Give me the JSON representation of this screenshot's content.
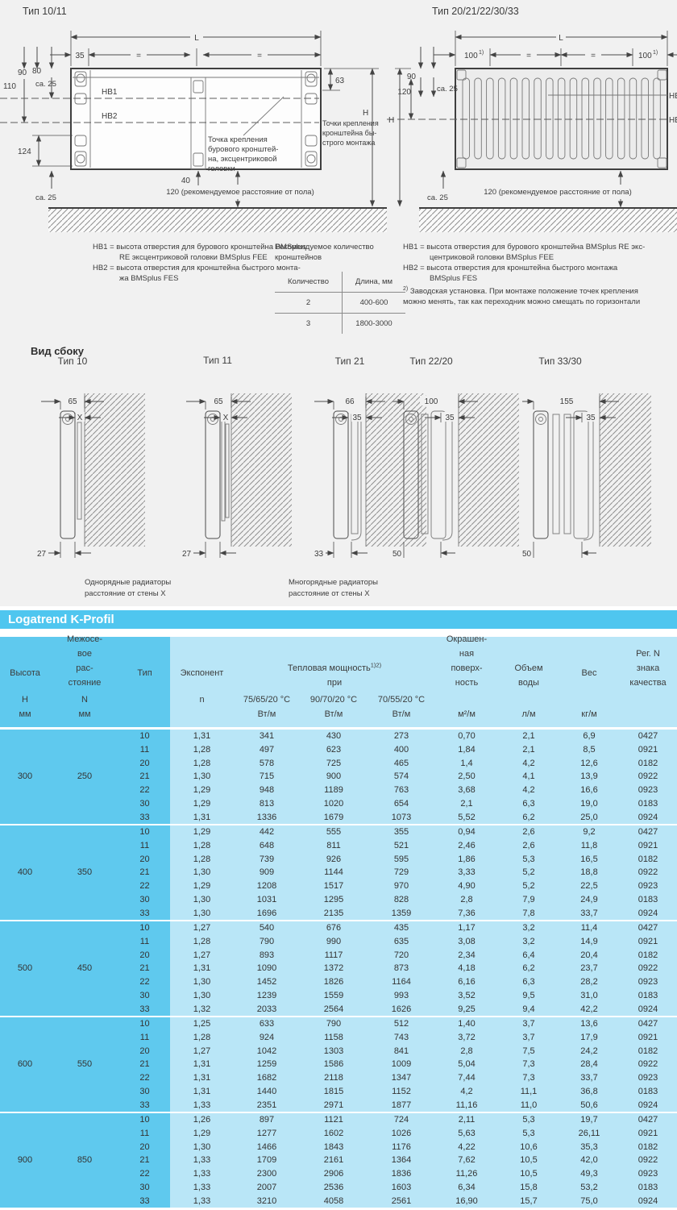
{
  "diagram_left": {
    "title": "Тип 10/11",
    "dim_L": "L",
    "dim_35": "35",
    "eq1": "=",
    "eq2": "=",
    "dim_90": "90",
    "dim_80": "80",
    "dim_110": "110",
    "ca25_top": "ca. 25",
    "hb1": "HB1",
    "hb2": "HB2",
    "dim_124": "124",
    "ca25_bottom": "ca. 25",
    "dim_40": "40",
    "dim_63": "63",
    "dim_H": "H",
    "note_center": [
      "Точка крепления",
      "бурового кронштей-",
      "на, эксцентриковой",
      "головки"
    ],
    "note_right": [
      "Точки крепления",
      "кронштейна бы-",
      "строго монтажа"
    ],
    "floor_note": "120 (рекомендуемое расстояние от пола)"
  },
  "diagram_right": {
    "title": "Тип 20/21/22/30/33",
    "dim_L": "L",
    "dim_100_left": "100",
    "dim_100_right": "100",
    "fn": "1)",
    "eq1": "=",
    "eq2": "=",
    "dim_90": "90",
    "dim_120": "120",
    "ca25_top": "ca. 25",
    "dim_H": "H",
    "hb1": "HB1",
    "hb2": "HB2",
    "ca25_bottom": "ca. 25",
    "floor_note": "120 (рекомендуемое расстояние от пола)"
  },
  "legends": {
    "left": [
      "HB1 = высота отверстия для бурового кронштейна BMSplus",
      "RE эксцентриковой головки BMSplus FEE",
      "HB2 = высота отверстия для кронштейна быстрого монта-",
      "жа BMSplus FES"
    ],
    "right": [
      "HB1 = высота отверстия для бурового кронштейна BMSplus RE экс-",
      "центриковой головки BMSplus FEE",
      "HB2 = высота отверстия для кронштейна быстрого монтажа",
      "BMSplus FES"
    ],
    "note_sup": "2)",
    "note": [
      "Заводская установка. При монтаже положение точек крепления",
      "можно менять, так как переходник можно смещать по горизонтали"
    ]
  },
  "brackets_table": {
    "title": [
      "Рекомендуемое количество",
      "кронштейнов"
    ],
    "headers": [
      "Количество",
      "Длина, мм"
    ],
    "rows": [
      [
        "2",
        "400-600"
      ],
      [
        "3",
        "1800-3000"
      ]
    ]
  },
  "side_views": {
    "heading": "Вид сбоку",
    "items": [
      {
        "title": "Тип 10",
        "dim_top": "65",
        "dim_mid": "X",
        "dim_bottom": "27"
      },
      {
        "title": "Тип 11",
        "dim_top": "65",
        "dim_mid": "X",
        "dim_bottom": "27"
      },
      {
        "title": "Тип 21",
        "dim_top": "66",
        "dim_mid": "35",
        "dim_bottom": "33"
      },
      {
        "title": "Тип 22/20",
        "dim_top": "100",
        "dim_mid": "35",
        "dim_bottom": "50"
      },
      {
        "title": "Тип 33/30",
        "dim_top": "155",
        "dim_mid": "35",
        "dim_bottom": "50"
      }
    ],
    "caption_single": [
      "Однорядные радиаторы",
      "расстояние от стены X"
    ],
    "caption_multi": [
      "Многорядные радиаторы",
      "расстояние от стены X"
    ]
  },
  "banner": {
    "title": "Logatrend K-Profil"
  },
  "table": {
    "headers": {
      "height_name": "Высота",
      "height_sym": "H",
      "height_unit": "мм",
      "spacing_lines": [
        "Межосе-",
        "вое",
        "рас-",
        "стояние"
      ],
      "spacing_sym": "N",
      "spacing_unit": "мм",
      "type": "Тип",
      "exponent": "Экспонент",
      "exponent_sym": "n",
      "power_title": "Тепловая мощность",
      "power_fn": "1)2)",
      "power_sub": "при",
      "power_cols": [
        "75/65/20 °C",
        "90/70/20 °C",
        "70/55/20 °C"
      ],
      "power_unit": "Вт/м",
      "surface_lines": [
        "Окрашен-",
        "ная",
        "поверх-",
        "ность"
      ],
      "surface_unit": "м²/м",
      "volume_lines": [
        "Объем",
        "воды"
      ],
      "volume_unit": "л/м",
      "weight": "Вес",
      "weight_unit": "кг/м",
      "reg_lines": [
        "Рег. N",
        "знака",
        "качества"
      ]
    },
    "groups": [
      {
        "height": "300",
        "spacing": "250",
        "rows": [
          [
            "10",
            "1,31",
            "341",
            "430",
            "273",
            "0,70",
            "2,1",
            "6,9",
            "0427"
          ],
          [
            "11",
            "1,28",
            "497",
            "623",
            "400",
            "1,84",
            "2,1",
            "8,5",
            "0921"
          ],
          [
            "20",
            "1,28",
            "578",
            "725",
            "465",
            "1,4",
            "4,2",
            "12,6",
            "0182"
          ],
          [
            "21",
            "1,30",
            "715",
            "900",
            "574",
            "2,50",
            "4,1",
            "13,9",
            "0922"
          ],
          [
            "22",
            "1,29",
            "948",
            "1189",
            "763",
            "3,68",
            "4,2",
            "16,6",
            "0923"
          ],
          [
            "30",
            "1,29",
            "813",
            "1020",
            "654",
            "2,1",
            "6,3",
            "19,0",
            "0183"
          ],
          [
            "33",
            "1,31",
            "1336",
            "1679",
            "1073",
            "5,52",
            "6,2",
            "25,0",
            "0924"
          ]
        ]
      },
      {
        "height": "400",
        "spacing": "350",
        "rows": [
          [
            "10",
            "1,29",
            "442",
            "555",
            "355",
            "0,94",
            "2,6",
            "9,2",
            "0427"
          ],
          [
            "11",
            "1,28",
            "648",
            "811",
            "521",
            "2,46",
            "2,6",
            "11,8",
            "0921"
          ],
          [
            "20",
            "1,28",
            "739",
            "926",
            "595",
            "1,86",
            "5,3",
            "16,5",
            "0182"
          ],
          [
            "21",
            "1,30",
            "909",
            "1144",
            "729",
            "3,33",
            "5,2",
            "18,8",
            "0922"
          ],
          [
            "22",
            "1,29",
            "1208",
            "1517",
            "970",
            "4,90",
            "5,2",
            "22,5",
            "0923"
          ],
          [
            "30",
            "1,30",
            "1031",
            "1295",
            "828",
            "2,8",
            "7,9",
            "24,9",
            "0183"
          ],
          [
            "33",
            "1,30",
            "1696",
            "2135",
            "1359",
            "7,36",
            "7,8",
            "33,7",
            "0924"
          ]
        ]
      },
      {
        "height": "500",
        "spacing": "450",
        "rows": [
          [
            "10",
            "1,27",
            "540",
            "676",
            "435",
            "1,17",
            "3,2",
            "11,4",
            "0427"
          ],
          [
            "11",
            "1,28",
            "790",
            "990",
            "635",
            "3,08",
            "3,2",
            "14,9",
            "0921"
          ],
          [
            "20",
            "1,27",
            "893",
            "1117",
            "720",
            "2,34",
            "6,4",
            "20,4",
            "0182"
          ],
          [
            "21",
            "1,31",
            "1090",
            "1372",
            "873",
            "4,18",
            "6,2",
            "23,7",
            "0922"
          ],
          [
            "22",
            "1,30",
            "1452",
            "1826",
            "1164",
            "6,16",
            "6,3",
            "28,2",
            "0923"
          ],
          [
            "30",
            "1,30",
            "1239",
            "1559",
            "993",
            "3,52",
            "9,5",
            "31,0",
            "0183"
          ],
          [
            "33",
            "1,32",
            "2033",
            "2564",
            "1626",
            "9,25",
            "9,4",
            "42,2",
            "0924"
          ]
        ]
      },
      {
        "height": "600",
        "spacing": "550",
        "rows": [
          [
            "10",
            "1,25",
            "633",
            "790",
            "512",
            "1,40",
            "3,7",
            "13,6",
            "0427"
          ],
          [
            "11",
            "1,28",
            "924",
            "1158",
            "743",
            "3,72",
            "3,7",
            "17,9",
            "0921"
          ],
          [
            "20",
            "1,27",
            "1042",
            "1303",
            "841",
            "2,8",
            "7,5",
            "24,2",
            "0182"
          ],
          [
            "21",
            "1,31",
            "1259",
            "1586",
            "1009",
            "5,04",
            "7,3",
            "28,4",
            "0922"
          ],
          [
            "22",
            "1,31",
            "1682",
            "2118",
            "1347",
            "7,44",
            "7,3",
            "33,7",
            "0923"
          ],
          [
            "30",
            "1,31",
            "1440",
            "1815",
            "1152",
            "4,2",
            "11,1",
            "36,8",
            "0183"
          ],
          [
            "33",
            "1,33",
            "2351",
            "2971",
            "1877",
            "11,16",
            "11,0",
            "50,6",
            "0924"
          ]
        ]
      },
      {
        "height": "900",
        "spacing": "850",
        "rows": [
          [
            "10",
            "1,26",
            "897",
            "1121",
            "724",
            "2,11",
            "5,3",
            "19,7",
            "0427"
          ],
          [
            "11",
            "1,29",
            "1277",
            "1602",
            "1026",
            "5,63",
            "5,3",
            "26,11",
            "0921"
          ],
          [
            "20",
            "1,30",
            "1466",
            "1843",
            "1176",
            "4,22",
            "10,6",
            "35,3",
            "0182"
          ],
          [
            "21",
            "1,33",
            "1709",
            "2161",
            "1364",
            "7,62",
            "10,5",
            "42,0",
            "0922"
          ],
          [
            "22",
            "1,33",
            "2300",
            "2906",
            "1836",
            "11,26",
            "10,5",
            "49,3",
            "0923"
          ],
          [
            "30",
            "1,33",
            "2007",
            "2536",
            "1603",
            "6,34",
            "15,8",
            "53,2",
            "0183"
          ],
          [
            "33",
            "1,33",
            "3210",
            "4058",
            "2561",
            "16,90",
            "15,7",
            "75,0",
            "0924"
          ]
        ]
      }
    ]
  },
  "colors": {
    "banner": "#4fc6ef",
    "table_dark": "#5fc9ee",
    "table_light": "#b9e6f7",
    "section_bg": "#f1f1f1"
  }
}
